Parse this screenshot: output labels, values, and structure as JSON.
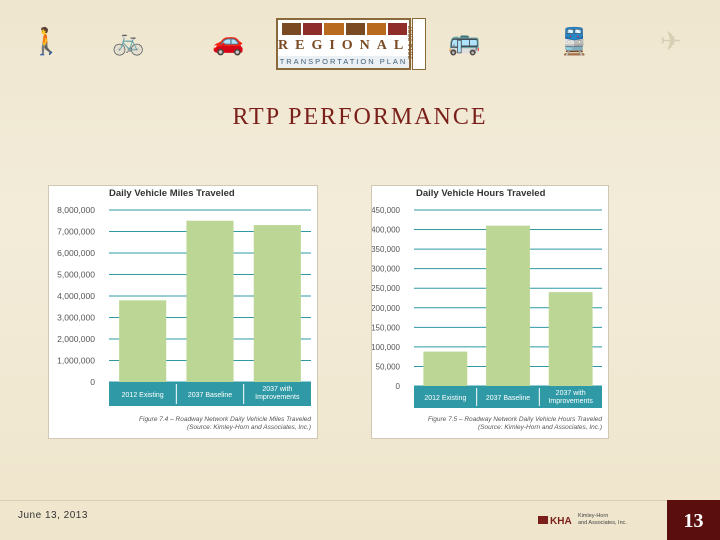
{
  "banner": {
    "icons": [
      "walk-icon",
      "bike-icon",
      "car-icon",
      "bus-icon",
      "train-icon",
      "plane-icon"
    ],
    "logo": {
      "word": "REGIONAL",
      "sub": "TRANSPORTATION PLAN",
      "years": "2014-2037"
    }
  },
  "title": "RTP PERFORMANCE",
  "chart_data": [
    {
      "type": "bar",
      "title": "Daily Vehicle Miles Traveled",
      "categories": [
        "2012 Existing",
        "2037 Baseline",
        "2037 with Improvements"
      ],
      "values": [
        3800000,
        7500000,
        7300000
      ],
      "ylim": [
        0,
        8000000
      ],
      "yticks": [
        "8,000,000",
        "7,000,000",
        "6,000,000",
        "5,000,000",
        "4,000,000",
        "3,000,000",
        "2,000,000",
        "1,000,000",
        "0"
      ],
      "ytick_values": [
        8000000,
        7000000,
        6000000,
        5000000,
        4000000,
        3000000,
        2000000,
        1000000,
        0
      ],
      "caption": [
        "Figure 7.4 – Roadway Network Daily Vehicle Miles Traveled",
        "(Source: Kimley-Horn and Associates, Inc.)"
      ],
      "grid": true,
      "bar_color": "#bcd795",
      "label_band_color": "#2f9aa5"
    },
    {
      "type": "bar",
      "title": "Daily Vehicle Hours Traveled",
      "categories": [
        "2012 Existing",
        "2037 Baseline",
        "2037 with Improvements"
      ],
      "values": [
        88000,
        410000,
        240000
      ],
      "ylim": [
        0,
        450000
      ],
      "yticks": [
        "450,000",
        "400,000",
        "350,000",
        "300,000",
        "250,000",
        "200,000",
        "150,000",
        "100,000",
        "50,000",
        "0"
      ],
      "ytick_values": [
        450000,
        400000,
        350000,
        300000,
        250000,
        200000,
        150000,
        100000,
        50000,
        0
      ],
      "caption": [
        "Figure 7.5 – Roadway Network Daily Vehicle Hours Traveled",
        "(Source: Kimley-Horn and Associates, Inc.)"
      ],
      "grid": true,
      "bar_color": "#bcd795",
      "label_band_color": "#2f9aa5"
    }
  ],
  "footer": {
    "date": "June 13, 2013",
    "company": [
      "Kimley-Horn",
      "and Associates, Inc."
    ],
    "company_mark": "KHA",
    "page": "13"
  }
}
